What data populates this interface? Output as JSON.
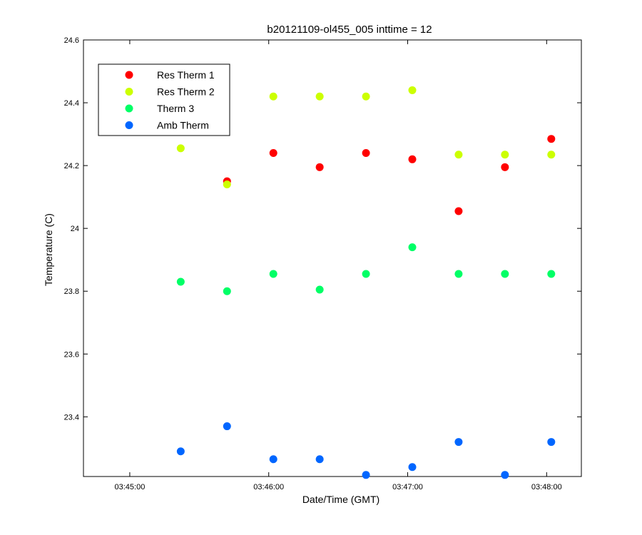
{
  "chart_data": {
    "type": "scatter",
    "title": "b20121109-ol455_005 inttime = 12",
    "xlabel": "Date/Time (GMT)",
    "ylabel": "Temperature (C)",
    "x_tick_labels": [
      "03:45:00",
      "03:46:00",
      "03:47:00",
      "03:48:00"
    ],
    "x_tick_seconds": [
      0,
      60,
      120,
      180
    ],
    "xlim_seconds": [
      -20,
      195
    ],
    "y_ticks": [
      23.4,
      23.6,
      23.8,
      24,
      24.2,
      24.4,
      24.6
    ],
    "ylim": [
      23.21,
      24.6
    ],
    "legend_position": "top-left",
    "grid": false,
    "series": [
      {
        "name": "Res Therm 1",
        "color": "#ff0000",
        "points": [
          {
            "time": "03:45:42",
            "value": 24.15
          },
          {
            "time": "03:46:02",
            "value": 24.24
          },
          {
            "time": "03:46:22",
            "value": 24.195
          },
          {
            "time": "03:46:42",
            "value": 24.24
          },
          {
            "time": "03:47:02",
            "value": 24.22
          },
          {
            "time": "03:47:22",
            "value": 24.055
          },
          {
            "time": "03:47:42",
            "value": 24.195
          },
          {
            "time": "03:48:02",
            "value": 24.285
          }
        ]
      },
      {
        "name": "Res Therm 2",
        "color": "#ccff00",
        "points": [
          {
            "time": "03:45:22",
            "value": 24.255
          },
          {
            "time": "03:45:42",
            "value": 24.14
          },
          {
            "time": "03:46:02",
            "value": 24.42
          },
          {
            "time": "03:46:22",
            "value": 24.42
          },
          {
            "time": "03:46:42",
            "value": 24.42
          },
          {
            "time": "03:47:02",
            "value": 24.44
          },
          {
            "time": "03:47:22",
            "value": 24.235
          },
          {
            "time": "03:47:42",
            "value": 24.235
          },
          {
            "time": "03:48:02",
            "value": 24.235
          }
        ]
      },
      {
        "name": "Therm 3",
        "color": "#00ff66",
        "points": [
          {
            "time": "03:45:22",
            "value": 23.83
          },
          {
            "time": "03:45:42",
            "value": 23.8
          },
          {
            "time": "03:46:02",
            "value": 23.855
          },
          {
            "time": "03:46:22",
            "value": 23.805
          },
          {
            "time": "03:46:42",
            "value": 23.855
          },
          {
            "time": "03:47:02",
            "value": 23.94
          },
          {
            "time": "03:47:22",
            "value": 23.855
          },
          {
            "time": "03:47:42",
            "value": 23.855
          },
          {
            "time": "03:48:02",
            "value": 23.855
          }
        ]
      },
      {
        "name": "Amb Therm",
        "color": "#0066ff",
        "points": [
          {
            "time": "03:45:22",
            "value": 23.29
          },
          {
            "time": "03:45:42",
            "value": 23.37
          },
          {
            "time": "03:46:02",
            "value": 23.265
          },
          {
            "time": "03:46:22",
            "value": 23.265
          },
          {
            "time": "03:46:42",
            "value": 23.215
          },
          {
            "time": "03:47:02",
            "value": 23.24
          },
          {
            "time": "03:47:22",
            "value": 23.32
          },
          {
            "time": "03:47:42",
            "value": 23.215
          },
          {
            "time": "03:48:02",
            "value": 23.32
          }
        ]
      }
    ]
  }
}
